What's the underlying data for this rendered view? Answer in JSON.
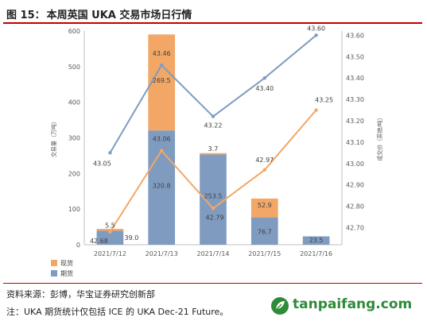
{
  "figure": {
    "label": "图 15：",
    "title": "本周英国 UKA 交易市场日行情"
  },
  "source": "资料来源：彭博，华宝证券研究创新部",
  "note": "注：UKA 期货统计仅包括 ICE 的 UKA Dec-21 Future。",
  "logo": {
    "text": "tanpaifang.com",
    "color": "#2e8b3a"
  },
  "chart_data": {
    "type": "bar",
    "categories": [
      "2021/7/12",
      "2021/7/13",
      "2021/7/14",
      "2021/7/15",
      "2021/7/16"
    ],
    "stacked": true,
    "series": [
      {
        "name": "期货",
        "kind": "bar",
        "axis": "left",
        "color": "#7f9cc0",
        "values": [
          39.0,
          320.8,
          253.5,
          76.7,
          23.5
        ],
        "labels": [
          "39.0",
          "320.8",
          "253.5",
          "76.7",
          "23.5"
        ]
      },
      {
        "name": "现货",
        "kind": "bar",
        "axis": "left",
        "color": "#f2a766",
        "values": [
          5.5,
          269.5,
          3.7,
          52.9,
          null
        ],
        "labels": [
          "5.5",
          "269.5",
          "3.7",
          "52.9",
          ""
        ]
      },
      {
        "name": "",
        "kind": "line",
        "axis": "right",
        "color": "#7f9cc0",
        "values": [
          43.05,
          43.46,
          43.22,
          43.4,
          43.6
        ],
        "labels": [
          "43.05",
          "43.46",
          "43.22",
          "43.40",
          "43.60"
        ]
      },
      {
        "name": "",
        "kind": "line",
        "axis": "right",
        "color": "#f2a766",
        "values": [
          42.68,
          43.06,
          42.79,
          42.97,
          43.25
        ],
        "labels": [
          "42.68",
          "43.06",
          "42.79",
          "42.97",
          "43.25"
        ]
      }
    ],
    "ylabel": "交易量（万吨）",
    "ylabel_right": "成交价（英镑/吨）",
    "ylim": [
      0,
      600
    ],
    "yticks": [
      "0",
      "100",
      "200",
      "300",
      "400",
      "500",
      "600"
    ],
    "ylim_right": [
      42.62,
      43.62
    ],
    "yticks_right": [
      "42.70",
      "42.80",
      "42.90",
      "43.00",
      "43.10",
      "43.20",
      "43.30",
      "43.40",
      "43.50",
      "43.60"
    ],
    "grid": false,
    "legend_position": "bottom-left"
  }
}
